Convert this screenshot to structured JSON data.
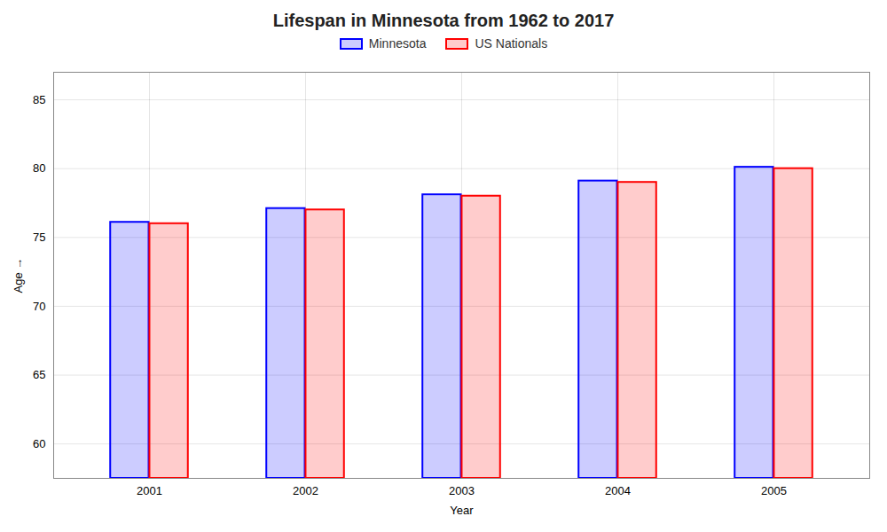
{
  "chart_data": {
    "type": "bar",
    "title": "Lifespan in Minnesota from 1962 to 2017",
    "xlabel": "Year",
    "ylabel": "Age",
    "categories": [
      "2001",
      "2002",
      "2003",
      "2004",
      "2005"
    ],
    "series": [
      {
        "name": "Minnesota",
        "color": "#0000ff",
        "values": [
          76.1,
          77.1,
          78.1,
          79.1,
          80.1
        ]
      },
      {
        "name": "US Nationals",
        "color": "#ff0000",
        "values": [
          76.0,
          77.0,
          78.0,
          79.0,
          80.0
        ]
      }
    ],
    "ylim": [
      57.5,
      87
    ],
    "yticks": [
      60,
      65,
      70,
      75,
      80,
      85
    ],
    "grid": true,
    "legend": "upper center"
  }
}
